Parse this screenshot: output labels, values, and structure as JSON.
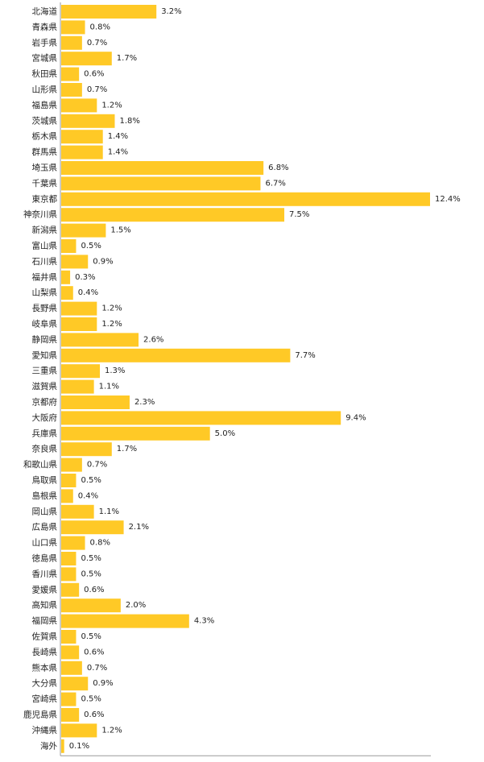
{
  "chart_data": {
    "type": "bar",
    "orientation": "horizontal",
    "title": "",
    "xlabel": "",
    "ylabel": "",
    "xlim": [
      0,
      12.4
    ],
    "grid": false,
    "legend": "none",
    "value_suffix": "%",
    "bar_color": "#FFC926",
    "axis_color": "#9a9a9a",
    "categories": [
      "北海道",
      "青森県",
      "岩手県",
      "宮城県",
      "秋田県",
      "山形県",
      "福島県",
      "茨城県",
      "栃木県",
      "群馬県",
      "埼玉県",
      "千葉県",
      "東京都",
      "神奈川県",
      "新潟県",
      "富山県",
      "石川県",
      "福井県",
      "山梨県",
      "長野県",
      "岐阜県",
      "静岡県",
      "愛知県",
      "三重県",
      "滋賀県",
      "京都府",
      "大阪府",
      "兵庫県",
      "奈良県",
      "和歌山県",
      "鳥取県",
      "島根県",
      "岡山県",
      "広島県",
      "山口県",
      "徳島県",
      "香川県",
      "愛媛県",
      "高知県",
      "福岡県",
      "佐賀県",
      "長崎県",
      "熊本県",
      "大分県",
      "宮崎県",
      "鹿児島県",
      "沖縄県",
      "海外"
    ],
    "values": [
      3.2,
      0.8,
      0.7,
      1.7,
      0.6,
      0.7,
      1.2,
      1.8,
      1.4,
      1.4,
      6.8,
      6.7,
      12.4,
      7.5,
      1.5,
      0.5,
      0.9,
      0.3,
      0.4,
      1.2,
      1.2,
      2.6,
      7.7,
      1.3,
      1.1,
      2.3,
      9.4,
      5.0,
      1.7,
      0.7,
      0.5,
      0.4,
      1.1,
      2.1,
      0.8,
      0.5,
      0.5,
      0.6,
      2.0,
      4.3,
      0.5,
      0.6,
      0.7,
      0.9,
      0.5,
      0.6,
      1.2,
      0.1
    ],
    "data_labels": [
      "3.2%",
      "0.8%",
      "0.7%",
      "1.7%",
      "0.6%",
      "0.7%",
      "1.2%",
      "1.8%",
      "1.4%",
      "1.4%",
      "6.8%",
      "6.7%",
      "12.4%",
      "7.5%",
      "1.5%",
      "0.5%",
      "0.9%",
      "0.3%",
      "0.4%",
      "1.2%",
      "1.2%",
      "2.6%",
      "7.7%",
      "1.3%",
      "1.1%",
      "2.3%",
      "9.4%",
      "5.0%",
      "1.7%",
      "0.7%",
      "0.5%",
      "0.4%",
      "1.1%",
      "2.1%",
      "0.8%",
      "0.5%",
      "0.5%",
      "0.6%",
      "2.0%",
      "4.3%",
      "0.5%",
      "0.6%",
      "0.7%",
      "0.9%",
      "0.5%",
      "0.6%",
      "1.2%",
      "0.1%"
    ]
  }
}
